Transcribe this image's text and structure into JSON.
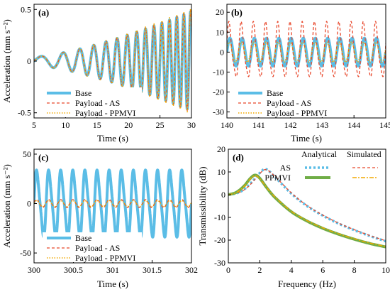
{
  "colors": {
    "base": "#5bbde6",
    "as": "#e8472b",
    "ppmvi": "#f2a900",
    "ppmvi_analytical": "#70ad47",
    "axis": "#000000"
  },
  "chart_data": [
    {
      "panel": "(a)",
      "type": "line",
      "xlabel": "Time (s)",
      "ylabel": "Acceleration (mm s⁻²)",
      "xlim": [
        5,
        30
      ],
      "ylim": [
        -0.55,
        0.55
      ],
      "xticks": [
        5,
        10,
        15,
        20,
        25,
        30
      ],
      "yticks": [
        -0.5,
        0,
        0.5
      ],
      "xtick_labels": [
        "5",
        "10",
        "15",
        "20",
        "25",
        "30"
      ],
      "ytick_labels": [
        "-0.5",
        "0",
        "0.5"
      ],
      "legend": "bottom-left",
      "series": [
        {
          "name": "Base",
          "style": "solid",
          "color": "#5bbde6"
        },
        {
          "name": "Payload - AS",
          "style": "dashed",
          "color": "#e8472b"
        },
        {
          "name": "Payload - PPMVI",
          "style": "dotted",
          "color": "#f2a900"
        }
      ],
      "signal": {
        "description_type": "chirp",
        "t0": 5,
        "t1": 30,
        "amp0": 0.04,
        "amp1": 0.48,
        "freq0": 0.2,
        "freq1": 0.95
      }
    },
    {
      "panel": "(b)",
      "type": "line",
      "xlabel": "Time (s)",
      "ylabel": "",
      "xlim": [
        140,
        145
      ],
      "ylim": [
        -33,
        24
      ],
      "xticks": [
        140,
        141,
        142,
        143,
        144,
        145
      ],
      "yticks": [
        -30,
        -20,
        -10,
        0,
        10,
        20
      ],
      "xtick_labels": [
        "140",
        "141",
        "142",
        "143",
        "144",
        "145"
      ],
      "ytick_labels": [
        "-30",
        "-20",
        "-10",
        "0",
        "10",
        "20"
      ],
      "legend": "bottom-left",
      "series": [
        {
          "name": "Base",
          "style": "solid",
          "color": "#5bbde6",
          "amplitude": 7,
          "frequency_hz": 2.6
        },
        {
          "name": "Payload - AS",
          "style": "dashed",
          "color": "#e8472b",
          "amplitude": 13,
          "frequency_hz": 2.6
        },
        {
          "name": "Payload - PPMVI",
          "style": "dotted",
          "color": "#f2a900",
          "amplitude": 5,
          "frequency_hz": 2.6
        }
      ]
    },
    {
      "panel": "(c)",
      "type": "line",
      "xlabel": "Time (s)",
      "ylabel": "Acceleration (mm s⁻²)",
      "xlim": [
        300,
        302
      ],
      "ylim": [
        -60,
        55
      ],
      "xticks": [
        300,
        300.5,
        301,
        301.5,
        302
      ],
      "yticks": [
        -50,
        0,
        50
      ],
      "xtick_labels": [
        "300",
        "300.5",
        "301",
        "301.5",
        "302"
      ],
      "ytick_labels": [
        "-50",
        "0",
        "50"
      ],
      "legend": "bottom-left",
      "series": [
        {
          "name": "Base",
          "style": "solid",
          "color": "#5bbde6",
          "amplitude": 32,
          "frequency_hz": 6.5
        },
        {
          "name": "Payload - AS",
          "style": "dashed",
          "color": "#e8472b",
          "amplitude": 4,
          "frequency_hz": 6.5
        },
        {
          "name": "Payload - PPMVI",
          "style": "dotted",
          "color": "#f2a900",
          "amplitude": 3,
          "frequency_hz": 6.5
        }
      ]
    },
    {
      "panel": "(d)",
      "type": "line",
      "xlabel": "Frequency (Hz)",
      "ylabel": "Transmissibility (dB)",
      "xlim": [
        0,
        10
      ],
      "ylim": [
        -30,
        20
      ],
      "xticks": [
        0,
        2,
        4,
        6,
        8,
        10
      ],
      "yticks": [
        -30,
        -20,
        -10,
        0,
        10,
        20
      ],
      "xtick_labels": [
        "0",
        "2",
        "4",
        "6",
        "8",
        "10"
      ],
      "ytick_labels": [
        "-30",
        "-20",
        "-10",
        "0",
        "10",
        "20"
      ],
      "legend": "top-right",
      "legend_headers": [
        "Analytical",
        "Simulated"
      ],
      "legend_rows": [
        "AS",
        "PPMVI"
      ],
      "series": [
        {
          "name": "AS Analytical",
          "style": "dotted-thick",
          "color": "#5bbde6",
          "x": [
            0,
            0.5,
            1,
            1.5,
            2,
            2.4,
            3,
            4,
            5,
            6,
            7,
            8,
            9,
            10
          ],
          "y": [
            0,
            0.6,
            2.3,
            5.6,
            9.6,
            11.2,
            7.5,
            0.5,
            -5,
            -9.2,
            -12.7,
            -15.6,
            -18.2,
            -20.5
          ]
        },
        {
          "name": "AS Simulated",
          "style": "dashed",
          "color": "#e8472b",
          "x": [
            0,
            0.5,
            1,
            1.5,
            2,
            2.4,
            3,
            4,
            5,
            6,
            7,
            8,
            9,
            10
          ],
          "y": [
            0,
            0.5,
            2.1,
            5.2,
            9.3,
            11.0,
            7.8,
            0.8,
            -4.8,
            -9,
            -12.5,
            -15.4,
            -18,
            -20.3
          ]
        },
        {
          "name": "PPMVI Analytical",
          "style": "solid-thick",
          "color": "#70ad47",
          "x": [
            0,
            0.5,
            1,
            1.4,
            1.7,
            2,
            2.5,
            3,
            4,
            5,
            6,
            7,
            8,
            9,
            10
          ],
          "y": [
            0,
            1.0,
            3.8,
            7.2,
            8.6,
            7.2,
            2.5,
            -1.5,
            -7.5,
            -11.6,
            -14.8,
            -17.4,
            -19.6,
            -21.5,
            -23
          ]
        },
        {
          "name": "PPMVI Simulated",
          "style": "dashdot",
          "color": "#f2a900",
          "x": [
            0,
            0.5,
            1,
            1.4,
            1.7,
            2,
            2.5,
            3,
            4,
            5,
            6,
            7,
            8,
            9,
            10
          ],
          "y": [
            0,
            0.9,
            3.6,
            7.0,
            8.3,
            7.0,
            2.6,
            -1.3,
            -7.3,
            -11.4,
            -14.6,
            -17.2,
            -19.4,
            -21.3,
            -22.8
          ]
        }
      ]
    }
  ]
}
